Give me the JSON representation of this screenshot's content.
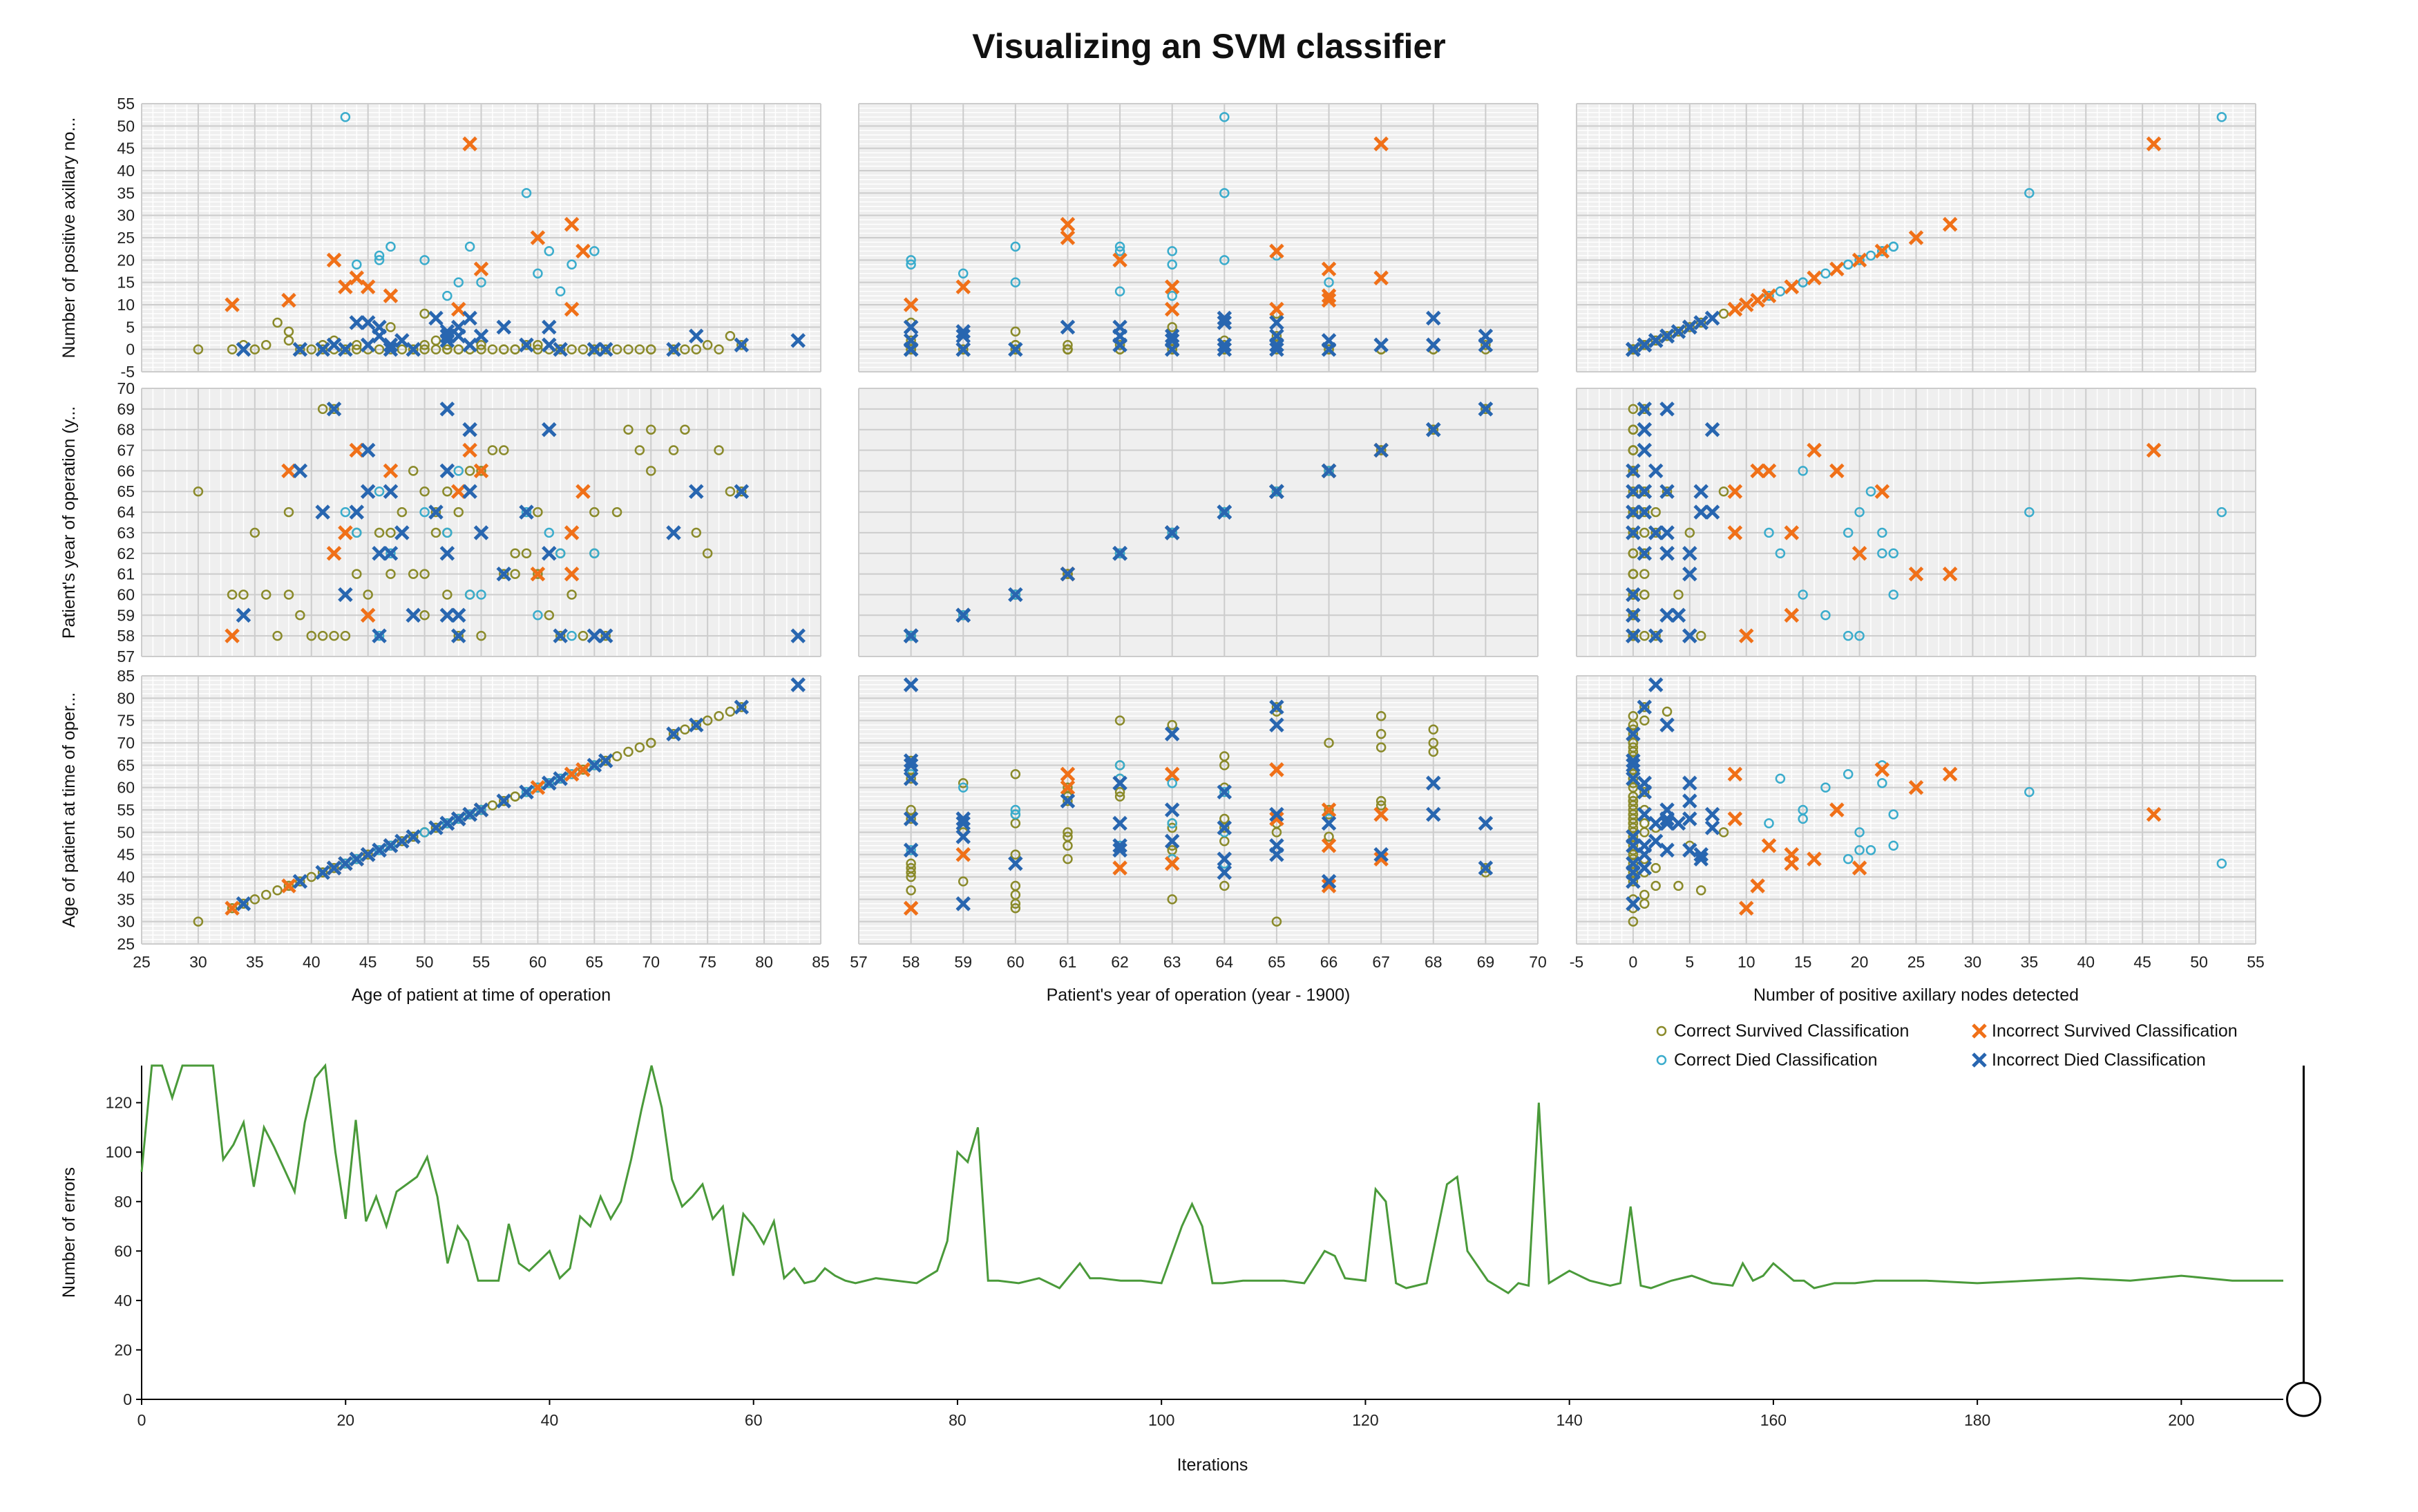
{
  "title": "Visualizing an SVM classifier",
  "colors": {
    "correct_survived": "#8a8a2a",
    "correct_died": "#3aaccc",
    "incorrect_survived": "#f07018",
    "incorrect_died": "#2866b0",
    "panel_bg": "#efefef",
    "grid": "#ffffff",
    "grid_major": "#cccccc",
    "error_line": "#4a9a3a"
  },
  "scatter": {
    "variables": [
      {
        "key": "age",
        "label": "Age of patient at time of operation",
        "short_label": "Age of patient at time of oper...",
        "range": [
          25,
          85
        ],
        "ticks": [
          25,
          30,
          35,
          40,
          45,
          50,
          55,
          60,
          65,
          70,
          75,
          80,
          85
        ]
      },
      {
        "key": "year",
        "label": "Patient's year of operation (year - 1900)",
        "short_label": "Patient's year of operation (y...",
        "range": [
          57,
          70
        ],
        "ticks": [
          57,
          58,
          59,
          60,
          61,
          62,
          63,
          64,
          65,
          66,
          67,
          68,
          69,
          70
        ]
      },
      {
        "key": "nodes",
        "label": "Number of positive axillary nodes detected",
        "short_label": "Number of positive axillary no...",
        "range": [
          -5,
          55
        ],
        "ticks": [
          -5,
          0,
          5,
          10,
          15,
          20,
          25,
          30,
          35,
          40,
          45,
          50,
          55
        ]
      }
    ],
    "rows": [
      "nodes",
      "year",
      "age"
    ],
    "cols": [
      "age",
      "year",
      "nodes"
    ]
  },
  "legend": [
    {
      "key": "correct_survived",
      "label": "Correct Survived Classification",
      "marker": "circle"
    },
    {
      "key": "correct_died",
      "label": "Correct Died Classification",
      "marker": "circle"
    },
    {
      "key": "incorrect_survived",
      "label": "Incorrect Survived Classification",
      "marker": "cross"
    },
    {
      "key": "incorrect_died",
      "label": "Incorrect Died Classification",
      "marker": "cross"
    }
  ],
  "chart_data": [
    {
      "type": "scatter",
      "title": "Visualizing an SVM classifier",
      "fields": [
        "age",
        "year",
        "nodes"
      ],
      "series": [
        {
          "name": "Correct Survived Classification",
          "key": "correct_survived",
          "points": [
            [
              30,
              65,
              0
            ],
            [
              33,
              60,
              0
            ],
            [
              34,
              60,
              1
            ],
            [
              35,
              63,
              0
            ],
            [
              36,
              60,
              1
            ],
            [
              37,
              58,
              6
            ],
            [
              38,
              60,
              4
            ],
            [
              38,
              64,
              2
            ],
            [
              39,
              59,
              0
            ],
            [
              40,
              58,
              0
            ],
            [
              41,
              58,
              0
            ],
            [
              41,
              69,
              1
            ],
            [
              42,
              69,
              0
            ],
            [
              42,
              58,
              2
            ],
            [
              43,
              58,
              0
            ],
            [
              44,
              61,
              0
            ],
            [
              44,
              63,
              1
            ],
            [
              45,
              60,
              0
            ],
            [
              46,
              63,
              0
            ],
            [
              47,
              61,
              0
            ],
            [
              47,
              63,
              5
            ],
            [
              48,
              64,
              0
            ],
            [
              49,
              66,
              0
            ],
            [
              49,
              61,
              0
            ],
            [
              50,
              65,
              8
            ],
            [
              50,
              59,
              0
            ],
            [
              50,
              61,
              1
            ],
            [
              51,
              64,
              0
            ],
            [
              51,
              63,
              2
            ],
            [
              52,
              63,
              0
            ],
            [
              52,
              60,
              0
            ],
            [
              52,
              65,
              1
            ],
            [
              53,
              58,
              0
            ],
            [
              53,
              64,
              0
            ],
            [
              54,
              60,
              0
            ],
            [
              54,
              66,
              0
            ],
            [
              55,
              58,
              1
            ],
            [
              55,
              66,
              0
            ],
            [
              56,
              67,
              0
            ],
            [
              57,
              61,
              0
            ],
            [
              57,
              67,
              0
            ],
            [
              58,
              61,
              0
            ],
            [
              58,
              62,
              0
            ],
            [
              59,
              62,
              1
            ],
            [
              60,
              61,
              0
            ],
            [
              60,
              64,
              1
            ],
            [
              61,
              59,
              0
            ],
            [
              62,
              62,
              0
            ],
            [
              62,
              58,
              0
            ],
            [
              63,
              60,
              0
            ],
            [
              64,
              58,
              0
            ],
            [
              65,
              62,
              0
            ],
            [
              65,
              64,
              0
            ],
            [
              66,
              58,
              0
            ],
            [
              67,
              64,
              0
            ],
            [
              68,
              68,
              0
            ],
            [
              69,
              67,
              0
            ],
            [
              70,
              68,
              0
            ],
            [
              70,
              66,
              0
            ],
            [
              72,
              67,
              0
            ],
            [
              73,
              68,
              0
            ],
            [
              74,
              63,
              0
            ],
            [
              75,
              62,
              1
            ],
            [
              76,
              67,
              0
            ],
            [
              77,
              65,
              3
            ],
            [
              78,
              65,
              1
            ]
          ]
        },
        {
          "name": "Correct Died Classification",
          "key": "correct_died",
          "points": [
            [
              43,
              64,
              52
            ],
            [
              44,
              63,
              19
            ],
            [
              46,
              58,
              20
            ],
            [
              47,
              62,
              23
            ],
            [
              52,
              63,
              12
            ],
            [
              53,
              66,
              15
            ],
            [
              54,
              60,
              23
            ],
            [
              55,
              60,
              15
            ],
            [
              59,
              64,
              35
            ],
            [
              60,
              59,
              17
            ],
            [
              61,
              63,
              22
            ],
            [
              62,
              62,
              13
            ],
            [
              63,
              58,
              19
            ],
            [
              65,
              62,
              22
            ],
            [
              46,
              65,
              21
            ],
            [
              50,
              64,
              20
            ]
          ]
        },
        {
          "name": "Incorrect Survived Classification",
          "key": "incorrect_survived",
          "points": [
            [
              33,
              58,
              10
            ],
            [
              38,
              66,
              11
            ],
            [
              42,
              62,
              20
            ],
            [
              43,
              63,
              14
            ],
            [
              44,
              67,
              16
            ],
            [
              45,
              59,
              14
            ],
            [
              47,
              66,
              12
            ],
            [
              53,
              65,
              9
            ],
            [
              54,
              67,
              46
            ],
            [
              55,
              66,
              18
            ],
            [
              60,
              61,
              25
            ],
            [
              63,
              61,
              28
            ],
            [
              64,
              65,
              22
            ],
            [
              63,
              63,
              9
            ]
          ]
        },
        {
          "name": "Incorrect Died Classification",
          "key": "incorrect_died",
          "points": [
            [
              34,
              59,
              0
            ],
            [
              39,
              66,
              0
            ],
            [
              41,
              64,
              0
            ],
            [
              42,
              69,
              1
            ],
            [
              43,
              60,
              0
            ],
            [
              44,
              64,
              6
            ],
            [
              45,
              65,
              6
            ],
            [
              45,
              67,
              1
            ],
            [
              46,
              62,
              3
            ],
            [
              46,
              58,
              5
            ],
            [
              47,
              62,
              1
            ],
            [
              47,
              65,
              0
            ],
            [
              48,
              63,
              2
            ],
            [
              49,
              59,
              0
            ],
            [
              51,
              64,
              7
            ],
            [
              52,
              69,
              3
            ],
            [
              52,
              62,
              3
            ],
            [
              52,
              59,
              4
            ],
            [
              52,
              66,
              2
            ],
            [
              53,
              59,
              3
            ],
            [
              53,
              58,
              5
            ],
            [
              54,
              68,
              7
            ],
            [
              54,
              65,
              1
            ],
            [
              55,
              63,
              3
            ],
            [
              57,
              61,
              5
            ],
            [
              59,
              64,
              1
            ],
            [
              61,
              68,
              1
            ],
            [
              61,
              62,
              5
            ],
            [
              62,
              58,
              0
            ],
            [
              65,
              58,
              0
            ],
            [
              66,
              58,
              0
            ],
            [
              72,
              63,
              0
            ],
            [
              74,
              65,
              3
            ],
            [
              78,
              65,
              1
            ],
            [
              83,
              58,
              2
            ]
          ]
        }
      ]
    },
    {
      "type": "line",
      "title": "",
      "xlabel": "Iterations",
      "ylabel": "Number of errors",
      "xlim": [
        0,
        210
      ],
      "ylim": [
        0,
        135
      ],
      "xticks": [
        0,
        20,
        40,
        60,
        80,
        100,
        120,
        140,
        160,
        180,
        200
      ],
      "yticks": [
        0,
        20,
        40,
        60,
        80,
        100,
        120
      ],
      "series": [
        {
          "name": "",
          "x": [
            0,
            1,
            2,
            3,
            4,
            5,
            6,
            7,
            8,
            9,
            10,
            11,
            12,
            13,
            14,
            15,
            16,
            17,
            18,
            19,
            20,
            21,
            22,
            23,
            24,
            25,
            26,
            27,
            28,
            29,
            30,
            31,
            32,
            33,
            34,
            35,
            36,
            37,
            38,
            39,
            40,
            41,
            42,
            43,
            44,
            45,
            46,
            47,
            48,
            49,
            50,
            51,
            52,
            53,
            54,
            55,
            56,
            57,
            58,
            59,
            60,
            61,
            62,
            63,
            64,
            65,
            66,
            67,
            68,
            69,
            70,
            72,
            74,
            76,
            78,
            79,
            80,
            81,
            82,
            83,
            84,
            86,
            88,
            90,
            92,
            93,
            94,
            96,
            98,
            100,
            102,
            103,
            104,
            105,
            106,
            108,
            110,
            112,
            114,
            116,
            117,
            118,
            120,
            121,
            122,
            123,
            124,
            126,
            128,
            129,
            130,
            131,
            132,
            134,
            135,
            136,
            137,
            138,
            140,
            142,
            144,
            145,
            146,
            147,
            148,
            150,
            152,
            154,
            156,
            157,
            158,
            159,
            160,
            162,
            163,
            164,
            166,
            168,
            170,
            175,
            180,
            185,
            190,
            195,
            200,
            205,
            210
          ],
          "y": [
            92,
            135,
            135,
            122,
            135,
            135,
            135,
            135,
            97,
            103,
            112,
            86,
            110,
            102,
            93,
            84,
            112,
            130,
            135,
            100,
            73,
            113,
            72,
            82,
            70,
            84,
            87,
            90,
            98,
            82,
            55,
            70,
            64,
            48,
            48,
            48,
            71,
            55,
            52,
            56,
            60,
            49,
            53,
            74,
            70,
            82,
            73,
            80,
            97,
            117,
            135,
            118,
            89,
            78,
            82,
            87,
            73,
            78,
            50,
            75,
            70,
            63,
            72,
            49,
            53,
            47,
            48,
            53,
            50,
            48,
            47,
            49,
            48,
            47,
            52,
            64,
            100,
            96,
            110,
            48,
            48,
            47,
            49,
            45,
            55,
            49,
            49,
            48,
            48,
            47,
            70,
            79,
            70,
            47,
            47,
            48,
            48,
            48,
            47,
            60,
            58,
            49,
            48,
            85,
            80,
            47,
            45,
            47,
            87,
            90,
            60,
            54,
            48,
            43,
            47,
            46,
            120,
            47,
            52,
            48,
            46,
            47,
            78,
            46,
            45,
            48,
            50,
            47,
            46,
            55,
            48,
            50,
            55,
            48,
            48,
            45,
            47,
            47,
            48,
            48,
            47,
            48,
            49,
            48,
            50,
            48,
            48
          ],
          "last_iteration": 212
        }
      ]
    }
  ]
}
